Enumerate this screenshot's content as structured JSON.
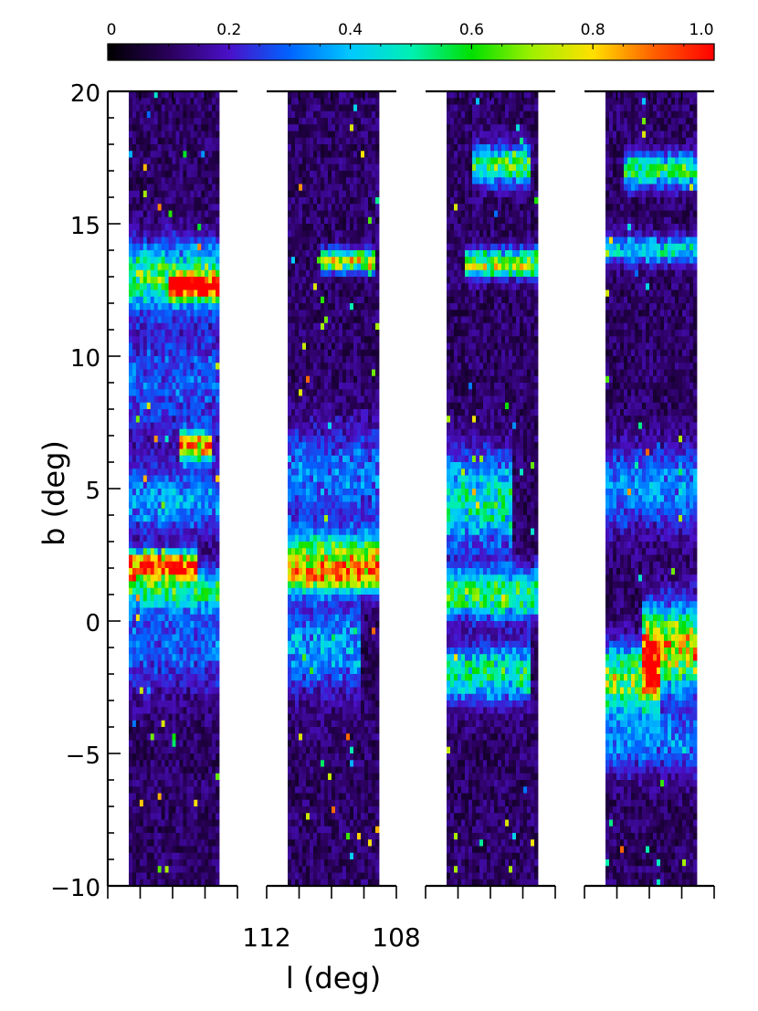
{
  "chart_data": {
    "type": "heatmap",
    "title": "",
    "xlabel": "l (deg)",
    "ylabel": "b (deg)",
    "ylim": [
      -10,
      20
    ],
    "y_ticks": [
      {
        "value": -10,
        "label": "−10"
      },
      {
        "value": -5,
        "label": "−5"
      },
      {
        "value": 0,
        "label": "0"
      },
      {
        "value": 5,
        "label": "5"
      },
      {
        "value": 10,
        "label": "10"
      },
      {
        "value": 15,
        "label": "15"
      },
      {
        "value": 20,
        "label": "20"
      }
    ],
    "x_tick_labels": [
      "112",
      "108"
    ],
    "colorbar": {
      "range": [
        0,
        1.0
      ],
      "tick_labels": [
        "0",
        "0.2",
        "0.4",
        "0.6",
        "0.8",
        "1.0"
      ],
      "colormap": "rainbow"
    },
    "panels": [
      {
        "id": 1,
        "features": [
          {
            "b": 13.0,
            "width": 1.2,
            "amp": 0.55,
            "lrange": [
              0.0,
              1.0
            ]
          },
          {
            "b": 12.6,
            "width": 0.4,
            "amp": 0.95,
            "lrange": [
              0.45,
              1.0
            ]
          },
          {
            "b": 9.0,
            "width": 2.2,
            "amp": 0.2,
            "lrange": [
              0.0,
              1.0
            ]
          },
          {
            "b": 6.6,
            "width": 0.5,
            "amp": 0.85,
            "lrange": [
              0.55,
              0.9
            ]
          },
          {
            "b": 4.5,
            "width": 1.2,
            "amp": 0.3,
            "lrange": [
              0.0,
              1.0
            ]
          },
          {
            "b": 2.1,
            "width": 0.5,
            "amp": 0.95,
            "lrange": [
              0.0,
              0.75
            ]
          },
          {
            "b": 1.2,
            "width": 0.8,
            "amp": 0.5,
            "lrange": [
              0.0,
              1.0
            ]
          },
          {
            "b": -1.0,
            "width": 1.6,
            "amp": 0.22,
            "lrange": [
              0.0,
              1.0
            ]
          }
        ]
      },
      {
        "id": 2,
        "features": [
          {
            "b": 13.6,
            "width": 0.4,
            "amp": 0.75,
            "lrange": [
              0.35,
              0.95
            ]
          },
          {
            "b": 5.5,
            "width": 1.8,
            "amp": 0.25,
            "lrange": [
              0.0,
              1.0
            ]
          },
          {
            "b": 2.4,
            "width": 0.9,
            "amp": 0.65,
            "lrange": [
              0.0,
              1.0
            ]
          },
          {
            "b": 1.6,
            "width": 0.6,
            "amp": 0.55,
            "lrange": [
              0.0,
              1.0
            ]
          },
          {
            "b": -1.0,
            "width": 1.6,
            "amp": 0.3,
            "lrange": [
              0.0,
              0.8
            ]
          }
        ]
      },
      {
        "id": 3,
        "features": [
          {
            "b": 17.2,
            "width": 0.7,
            "amp": 0.55,
            "lrange": [
              0.3,
              0.9
            ]
          },
          {
            "b": 13.5,
            "width": 0.5,
            "amp": 0.7,
            "lrange": [
              0.2,
              1.0
            ]
          },
          {
            "b": 4.5,
            "width": 1.7,
            "amp": 0.45,
            "lrange": [
              0.0,
              0.7
            ]
          },
          {
            "b": 1.0,
            "width": 0.9,
            "amp": 0.55,
            "lrange": [
              0.0,
              1.0
            ]
          },
          {
            "b": -2.0,
            "width": 1.0,
            "amp": 0.5,
            "lrange": [
              0.0,
              0.9
            ]
          }
        ]
      },
      {
        "id": 4,
        "features": [
          {
            "b": 17.0,
            "width": 0.6,
            "amp": 0.55,
            "lrange": [
              0.2,
              1.0
            ]
          },
          {
            "b": 14.0,
            "width": 0.5,
            "amp": 0.4,
            "lrange": [
              0.0,
              1.0
            ]
          },
          {
            "b": 5.0,
            "width": 1.5,
            "amp": 0.28,
            "lrange": [
              0.0,
              1.0
            ]
          },
          {
            "b": -1.0,
            "width": 1.5,
            "amp": 0.8,
            "lrange": [
              0.4,
              1.0
            ]
          },
          {
            "b": -2.2,
            "width": 1.2,
            "amp": 0.65,
            "lrange": [
              0.0,
              0.6
            ]
          },
          {
            "b": -4.5,
            "width": 1.2,
            "amp": 0.25,
            "lrange": [
              0.0,
              1.0
            ]
          }
        ]
      }
    ]
  }
}
